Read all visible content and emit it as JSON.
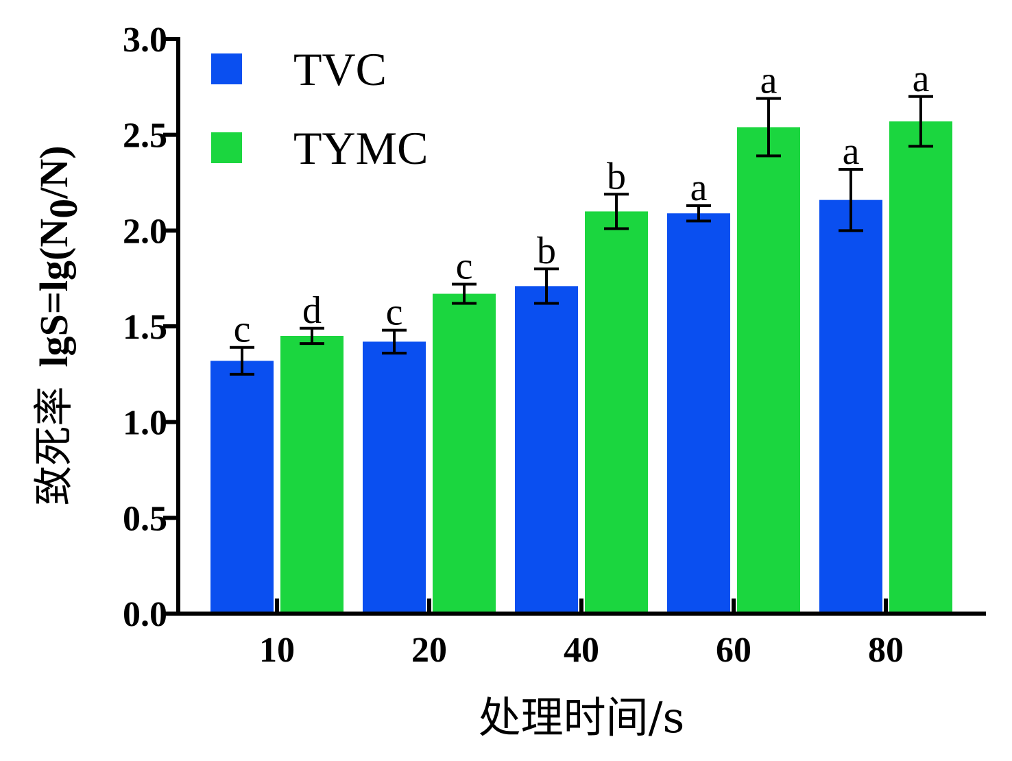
{
  "chart_data": {
    "type": "bar",
    "xlabel": "处理时间/s",
    "ylabel_prefix": "致死率",
    "ylabel_formula": "lgS=lg(N",
    "ylabel_subscript": "0",
    "ylabel_suffix": "/N)",
    "ylim": [
      0,
      3.0
    ],
    "yticks": [
      "0.0",
      "0.5",
      "1.0",
      "1.5",
      "2.0",
      "2.5",
      "3.0"
    ],
    "categories": [
      "10",
      "20",
      "40",
      "60",
      "80"
    ],
    "legend_position": "top-left",
    "grid": false,
    "series": [
      {
        "name": "TVC",
        "color": "#0a4ff0",
        "values": [
          1.32,
          1.42,
          1.71,
          2.09,
          2.16
        ],
        "errors": [
          0.07,
          0.06,
          0.09,
          0.04,
          0.16
        ],
        "labels": [
          "c",
          "c",
          "b",
          "a",
          "a"
        ]
      },
      {
        "name": "TYMC",
        "color": "#1bd63f",
        "values": [
          1.45,
          1.67,
          2.1,
          2.54,
          2.57
        ],
        "errors": [
          0.04,
          0.05,
          0.09,
          0.15,
          0.13
        ],
        "labels": [
          "d",
          "c",
          "b",
          "a",
          "a"
        ]
      }
    ]
  }
}
